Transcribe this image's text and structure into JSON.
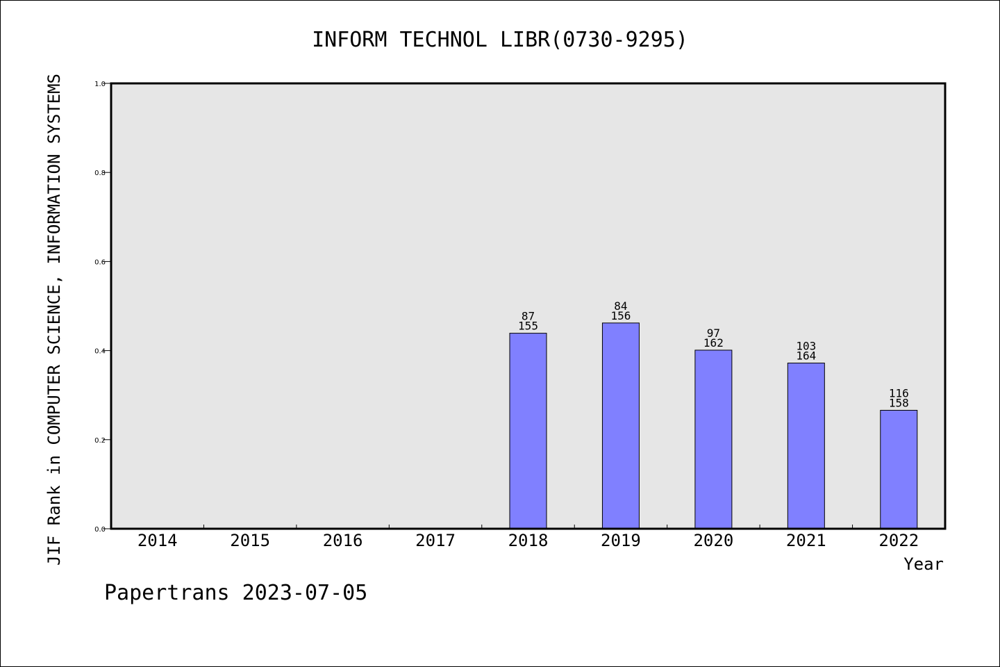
{
  "chart_data": {
    "type": "bar",
    "title": "INFORM TECHNOL LIBR(0730-9295)",
    "ylabel": "JIF Rank in COMPUTER SCIENCE, INFORMATION SYSTEMS",
    "xlabel": "Year",
    "ylim": [
      0,
      1.0
    ],
    "yticks": [
      "0.0",
      "0.2",
      "0.4",
      "0.6",
      "0.8",
      "1.0"
    ],
    "categories": [
      "2014",
      "2015",
      "2016",
      "2017",
      "2018",
      "2019",
      "2020",
      "2021",
      "2022"
    ],
    "values": [
      null,
      null,
      null,
      null,
      0.439,
      0.462,
      0.401,
      0.372,
      0.266
    ],
    "rank_labels": [
      null,
      null,
      null,
      null,
      {
        "rank": "87",
        "total": "155"
      },
      {
        "rank": "84",
        "total": "156"
      },
      {
        "rank": "97",
        "total": "162"
      },
      {
        "rank": "103",
        "total": "164"
      },
      {
        "rank": "116",
        "total": "158"
      }
    ],
    "bar_color": "#8080ff",
    "plot_background": "#e6e6e6",
    "grid": false
  },
  "footer": "Papertrans 2023-07-05"
}
